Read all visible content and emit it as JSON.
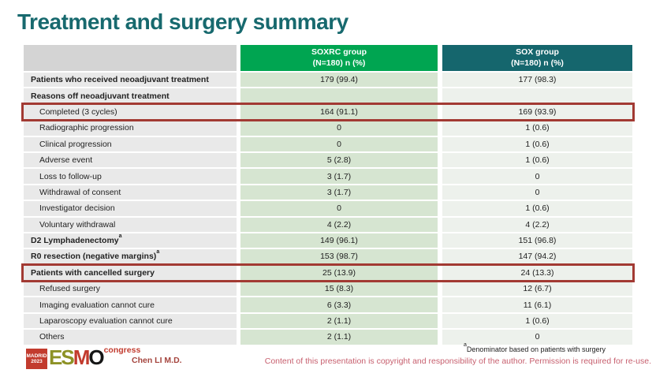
{
  "slide": {
    "title": "Treatment and surgery summary",
    "presenter": "Chen LI M.D.",
    "footnote_sup": "a",
    "footnote": "Denominator based on patients with surgery",
    "copyright": "Content of this presentation is copyright and responsibility of the author.  Permission is required for re-use.",
    "logo": {
      "city": "MADRID",
      "year": "2023",
      "letters": [
        "E",
        "S",
        "M",
        "O"
      ],
      "congress": "congress"
    }
  },
  "colors": {
    "title_teal": "#17696e",
    "soxrc_header_green": "#00a551",
    "sox_header_teal": "#15666d",
    "soxrc_cell_green": "#d6e5d1",
    "sox_cell_gray": "#edf1ec",
    "label_cell_gray": "#e9e9e9",
    "highlight_red": "#a23a33",
    "copyright_rose": "#c75f6e",
    "presenter_red": "#a5453e"
  },
  "table": {
    "columns": [
      {
        "label": "",
        "sublabel": ""
      },
      {
        "label": "SOXRC group",
        "sublabel": "(N=180)  n (%)"
      },
      {
        "label": "SOX group",
        "sublabel": "(N=180)  n (%)"
      }
    ],
    "rows": [
      {
        "label": "Patients who received neoadjuvant treatment",
        "sup": "",
        "soxrc": "179 (99.4)",
        "sox": "177 (98.3)",
        "bold": true,
        "indent": false,
        "highlight": false
      },
      {
        "label": "Reasons off neoadjuvant treatment",
        "sup": "",
        "soxrc": "",
        "sox": "",
        "bold": true,
        "indent": false,
        "highlight": false
      },
      {
        "label": "Completed (3 cycles)",
        "sup": "",
        "soxrc": "164 (91.1)",
        "sox": "169 (93.9)",
        "bold": false,
        "indent": true,
        "highlight": true
      },
      {
        "label": "Radiographic progression",
        "sup": "",
        "soxrc": "0",
        "sox": "1 (0.6)",
        "bold": false,
        "indent": true,
        "highlight": false
      },
      {
        "label": "Clinical progression",
        "sup": "",
        "soxrc": "0",
        "sox": "1 (0.6)",
        "bold": false,
        "indent": true,
        "highlight": false
      },
      {
        "label": "Adverse event",
        "sup": "",
        "soxrc": "5 (2.8)",
        "sox": "1 (0.6)",
        "bold": false,
        "indent": true,
        "highlight": false
      },
      {
        "label": "Loss to follow-up",
        "sup": "",
        "soxrc": "3 (1.7)",
        "sox": "0",
        "bold": false,
        "indent": true,
        "highlight": false
      },
      {
        "label": "Withdrawal of consent",
        "sup": "",
        "soxrc": "3 (1.7)",
        "sox": "0",
        "bold": false,
        "indent": true,
        "highlight": false
      },
      {
        "label": "Investigator decision",
        "sup": "",
        "soxrc": "0",
        "sox": "1 (0.6)",
        "bold": false,
        "indent": true,
        "highlight": false
      },
      {
        "label": "Voluntary withdrawal",
        "sup": "",
        "soxrc": "4 (2.2)",
        "sox": "4 (2.2)",
        "bold": false,
        "indent": true,
        "highlight": false
      },
      {
        "label": "D2 Lymphadenectomy",
        "sup": "a",
        "soxrc": "149 (96.1)",
        "sox": "151 (96.8)",
        "bold": true,
        "indent": false,
        "highlight": false
      },
      {
        "label": "R0 resection (negative margins)",
        "sup": "a",
        "soxrc": "153 (98.7)",
        "sox": "147 (94.2)",
        "bold": true,
        "indent": false,
        "highlight": false
      },
      {
        "label": "Patients with cancelled surgery",
        "sup": "",
        "soxrc": "25 (13.9)",
        "sox": "24 (13.3)",
        "bold": true,
        "indent": false,
        "highlight": true
      },
      {
        "label": "Refused surgery",
        "sup": "",
        "soxrc": "15 (8.3)",
        "sox": "12 (6.7)",
        "bold": false,
        "indent": true,
        "highlight": false
      },
      {
        "label": "Imaging evaluation cannot cure",
        "sup": "",
        "soxrc": "6 (3.3)",
        "sox": "11 (6.1)",
        "bold": false,
        "indent": true,
        "highlight": false
      },
      {
        "label": "Laparoscopy evaluation cannot cure",
        "sup": "",
        "soxrc": "2 (1.1)",
        "sox": "1 (0.6)",
        "bold": false,
        "indent": true,
        "highlight": false
      },
      {
        "label": "Others",
        "sup": "",
        "soxrc": "2 (1.1)",
        "sox": "0",
        "bold": false,
        "indent": true,
        "highlight": false
      }
    ]
  }
}
